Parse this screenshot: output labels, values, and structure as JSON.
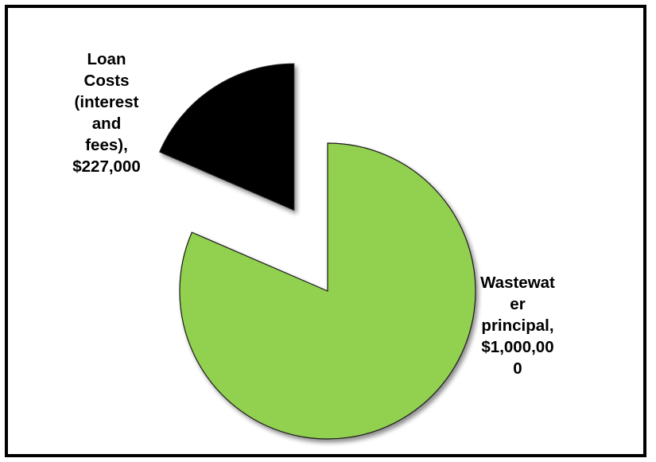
{
  "chart_data": {
    "type": "pie",
    "title": "",
    "legend": "none",
    "slices": [
      {
        "label_lines": [
          "Loan",
          "Costs",
          "(interest",
          "and",
          "fees),",
          "$227,000"
        ],
        "value": 227000,
        "color": "#000000",
        "exploded": true
      },
      {
        "label_lines": [
          "Wastewat",
          "er",
          "principal,",
          "$1,000,00",
          "0"
        ],
        "value": 1000000,
        "color": "#92d050",
        "exploded": true
      }
    ]
  }
}
